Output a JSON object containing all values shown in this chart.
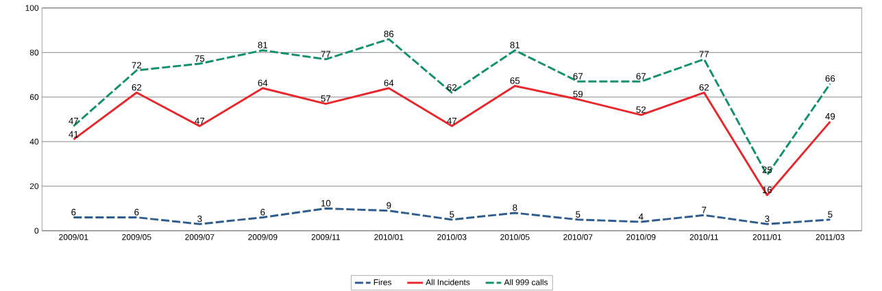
{
  "chart_data": {
    "type": "line",
    "categories": [
      "2009/01",
      "2009/05",
      "2009/07",
      "2009/09",
      "2009/11",
      "2010/01",
      "2010/03",
      "2010/05",
      "2010/07",
      "2010/09",
      "2010/11",
      "2011/01",
      "2011/03"
    ],
    "series": [
      {
        "name": "Fires",
        "color": "#2e5c8f",
        "line_style": "dashed",
        "values": [
          6,
          6,
          3,
          6,
          10,
          9,
          5,
          8,
          5,
          4,
          7,
          3,
          5
        ]
      },
      {
        "name": "All Incidents",
        "color": "#e8262b",
        "line_style": "solid",
        "values": [
          41,
          62,
          47,
          64,
          57,
          64,
          47,
          65,
          59,
          52,
          62,
          16,
          49
        ]
      },
      {
        "name": "All 999 calls",
        "color": "#11906b",
        "line_style": "dashed",
        "values": [
          47,
          72,
          75,
          81,
          77,
          86,
          62,
          81,
          67,
          67,
          77,
          25,
          66
        ]
      }
    ],
    "ylim": [
      0,
      100
    ],
    "yticks": [
      0,
      20,
      40,
      60,
      80,
      100
    ],
    "grid": "y",
    "legend": "bottom",
    "marker": "none",
    "data_labels": true
  }
}
